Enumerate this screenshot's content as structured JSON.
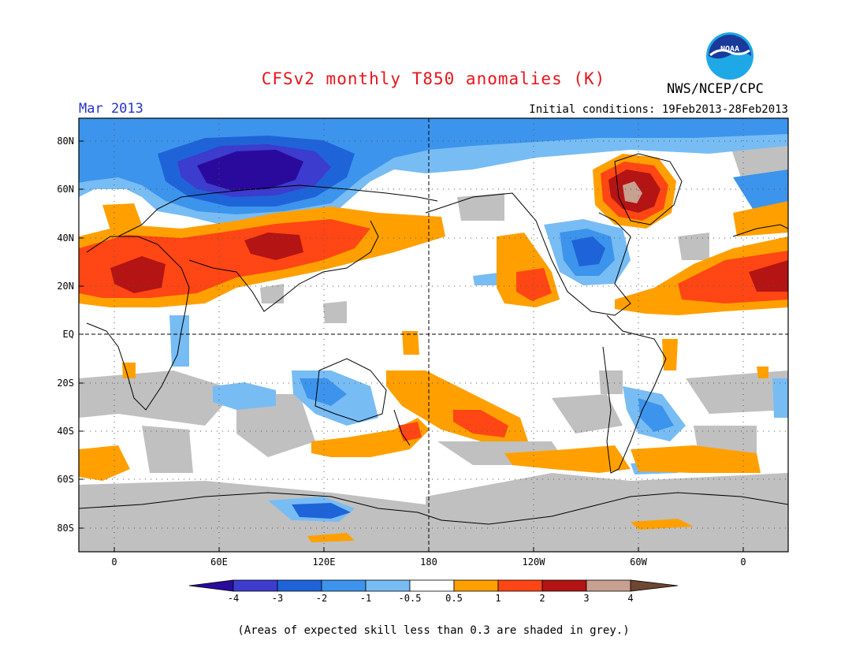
{
  "header": {
    "title": "CFSv2 monthly T850 anomalies (K)",
    "agency": "NWS/NCEP/CPC",
    "logo_text": "NOAA",
    "month": "Mar 2013",
    "initial_conditions": "Initial conditions: 19Feb2013-28Feb2013"
  },
  "axes": {
    "lat_labels": [
      "80N",
      "60N",
      "40N",
      "20N",
      "EQ",
      "20S",
      "40S",
      "60S",
      "80S"
    ],
    "lon_labels": [
      "0",
      "60E",
      "120E",
      "180",
      "120W",
      "60W",
      "0"
    ]
  },
  "colorbar": {
    "tick_labels": [
      "-4",
      "-3",
      "-2",
      "-1",
      "-0.5",
      "0.5",
      "1",
      "2",
      "3",
      "4"
    ],
    "colors": [
      "#2a0a9c",
      "#3c3ccf",
      "#1e64d8",
      "#3c94ec",
      "#78bcf4",
      "#ffffff",
      "#ffa000",
      "#ff4614",
      "#b41414",
      "#c8a090",
      "#6e4632"
    ]
  },
  "footnote": "(Areas of expected skill less than 0.3 are shaded in grey.)"
}
